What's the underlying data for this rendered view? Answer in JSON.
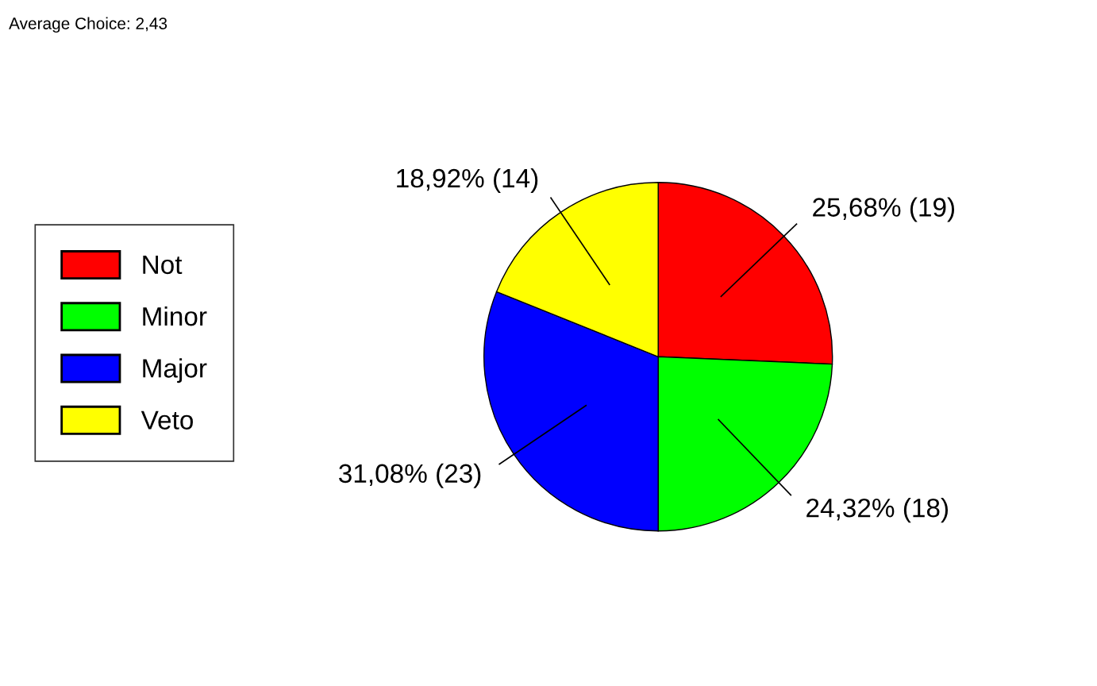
{
  "chart_data": {
    "type": "pie",
    "title": "Average Choice: 2,43",
    "categories": [
      "Not",
      "Minor",
      "Major",
      "Veto"
    ],
    "values": [
      19,
      18,
      23,
      14
    ],
    "value_labels": [
      "25,68% (19)",
      "24,32% (18)",
      "31,08% (23)",
      "18,92% (14)"
    ],
    "colors": [
      "#ff0000",
      "#00ff00",
      "#0000ff",
      "#ffff00"
    ],
    "legend": "left"
  }
}
